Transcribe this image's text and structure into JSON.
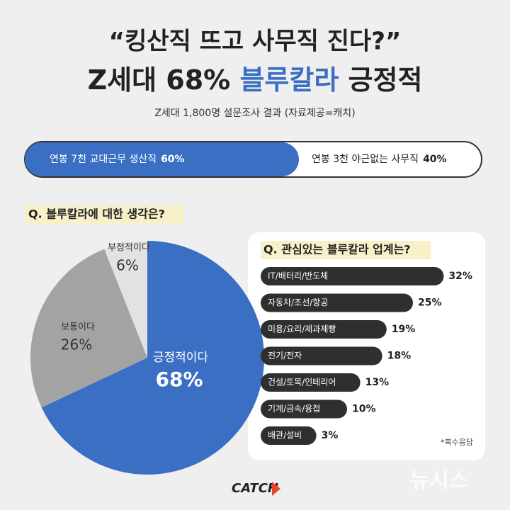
{
  "header": {
    "title": "“킹산직 뜨고 사무직 진다?”",
    "headline": [
      "Z세대 68%",
      "블루칼라",
      "긍정적"
    ],
    "subtitle": "Z세대 1,800명 설문조사 결과 (자료제공=캐치)"
  },
  "chart_data": [
    {
      "type": "bar",
      "stacked": true,
      "series": [
        {
          "name": "연봉 7천 교대근무 생산직",
          "color": "#3a6fc4",
          "values": [
            60
          ],
          "value_labels": [
            "60%"
          ]
        },
        {
          "name": "연봉 3천 야근없는 사무직",
          "color": "#ffffff",
          "values": [
            40
          ],
          "value_labels": [
            "40%"
          ]
        }
      ]
    },
    {
      "type": "pie",
      "title": "Q. 블루칼라에 대한 생각은?",
      "categories": [
        "긍정적이다",
        "보통이다",
        "부정적이다"
      ],
      "values": [
        68,
        26,
        6
      ],
      "value_labels": [
        "68%",
        "26%",
        "6%"
      ],
      "colors": [
        "#3a6fc4",
        "#a3a3a3",
        "#e2e2e2"
      ]
    },
    {
      "type": "bar",
      "title": "Q. 관심있는 블루칼라 업계는?",
      "categories": [
        "IT/배터리/반도체",
        "자동차/조선/항공",
        "미용/요리/제과제빵",
        "전기/전자",
        "건설/토목/인테리어",
        "기계/금속/용접",
        "배관/설비"
      ],
      "values": [
        32,
        25,
        19,
        18,
        13,
        10,
        3
      ],
      "value_labels": [
        "32%",
        "25%",
        "19%",
        "18%",
        "13%",
        "10%",
        "3%"
      ],
      "color": "#2f2f2f",
      "note": "*복수응답"
    }
  ],
  "footer": {
    "logo": "CATCH",
    "watermark": "뉴시스"
  }
}
